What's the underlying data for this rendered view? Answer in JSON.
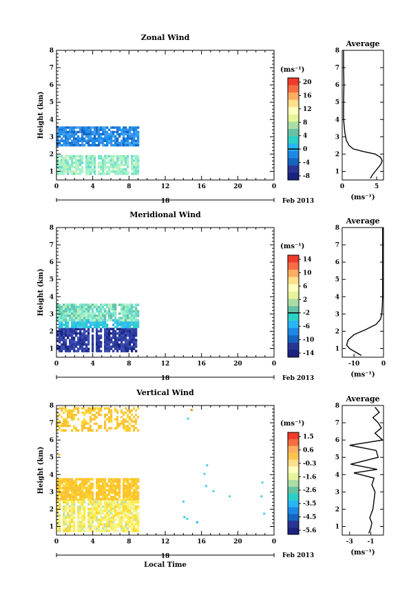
{
  "panels": [
    {
      "title": "Zonal Wind",
      "ylabel": "Height (km)",
      "unit_label": "(ms⁻¹)",
      "date_label": "Feb 2013",
      "day_label": "18",
      "xticks": [
        "0",
        "4",
        "8",
        "12",
        "16",
        "20",
        "0"
      ],
      "yticks": [
        "1",
        "2",
        "3",
        "4",
        "5",
        "6",
        "7",
        "8"
      ],
      "colorbar": {
        "ticks": [
          "20",
          "16",
          "12",
          "8",
          "4",
          "0",
          "-4",
          "-8"
        ],
        "colors": [
          "#ef3b2c",
          "#f46d43",
          "#fdae61",
          "#fee08b",
          "#ffffbf",
          "#e6f598",
          "#abdda4",
          "#66c2a5",
          "#2bd1c5",
          "#29b6f6",
          "#1e88e5",
          "#1565c0",
          "#283593",
          "#1a237e"
        ],
        "zero_line_index": 5
      },
      "heatmap": {
        "x_hours": [
          0,
          9
        ],
        "bands": [
          {
            "h_from": 0.9,
            "h_to": 1.95,
            "palette": [
              "#7fe5c8",
              "#9ff0d0",
              "#b6f2c0",
              "#6ad9d0",
              "#a8efc6",
              "#c6f5b8"
            ]
          },
          {
            "h_from": 2.5,
            "h_to": 3.6,
            "palette": [
              "#1e88e5",
              "#2196f3",
              "#1976d2",
              "#42a5f5",
              "#1565c0",
              "#3f8fe8"
            ]
          }
        ]
      },
      "average": {
        "title": "Average",
        "xlabel": "(ms⁻¹)",
        "xticks": [
          "0",
          "5"
        ],
        "xlim": [
          0,
          6
        ],
        "ylim": [
          0.5,
          8
        ],
        "profile": [
          [
            4.1,
            0.6
          ],
          [
            4.4,
            0.8
          ],
          [
            4.8,
            1.0
          ],
          [
            5.2,
            1.2
          ],
          [
            5.6,
            1.4
          ],
          [
            5.8,
            1.6
          ],
          [
            5.6,
            1.8
          ],
          [
            4.8,
            2.0
          ],
          [
            3.0,
            2.15
          ],
          [
            1.6,
            2.3
          ],
          [
            1.0,
            2.5
          ],
          [
            0.6,
            2.8
          ],
          [
            0.4,
            3.2
          ],
          [
            0.3,
            3.6
          ],
          [
            0.2,
            4.0
          ],
          [
            0.2,
            5.0
          ],
          [
            0.25,
            6.0
          ],
          [
            0.2,
            7.0
          ],
          [
            0.2,
            8.0
          ]
        ]
      }
    },
    {
      "title": "Meridional Wind",
      "ylabel": "Height (km)",
      "unit_label": "(ms⁻¹)",
      "date_label": "Feb 2013",
      "day_label": "18",
      "xticks": [
        "0",
        "4",
        "8",
        "12",
        "16",
        "20",
        "0"
      ],
      "yticks": [
        "1",
        "2",
        "3",
        "4",
        "5",
        "6",
        "7",
        "8"
      ],
      "colorbar": {
        "ticks": [
          "14",
          "10",
          "6",
          "2",
          "-2",
          "-6",
          "-10",
          "-14"
        ],
        "colors": [
          "#ef3b2c",
          "#f46d43",
          "#fdae61",
          "#fee08b",
          "#ffffbf",
          "#e6f598",
          "#abdda4",
          "#66c2a5",
          "#2bd1c5",
          "#29b6f6",
          "#1e88e5",
          "#1565c0",
          "#283593",
          "#1a237e"
        ],
        "zero_line_index": 4
      },
      "heatmap": {
        "x_hours": [
          0,
          9
        ],
        "bands": [
          {
            "h_from": 0.8,
            "h_to": 2.2,
            "palette": [
              "#283593",
              "#303f9f",
              "#3949ab",
              "#1a237e",
              "#3f51b5",
              "#2c3aa8"
            ]
          },
          {
            "h_from": 2.2,
            "h_to": 2.7,
            "palette": [
              "#29b6f6",
              "#4fc3f7",
              "#26c6da",
              "#2bd1c5"
            ]
          },
          {
            "h_from": 2.7,
            "h_to": 3.6,
            "palette": [
              "#7fe5c8",
              "#6ad9d0",
              "#9ff0d0",
              "#66c2a5",
              "#b6f2c0"
            ]
          }
        ]
      },
      "average": {
        "title": "Average",
        "xlabel": "(ms⁻¹)",
        "xticks": [
          "-10",
          "0"
        ],
        "xlim": [
          -14,
          0
        ],
        "ylim": [
          0.5,
          8
        ],
        "profile": [
          [
            -7.5,
            0.6
          ],
          [
            -9.5,
            0.8
          ],
          [
            -11.5,
            1.0
          ],
          [
            -12.5,
            1.2
          ],
          [
            -12.0,
            1.5
          ],
          [
            -10.0,
            1.8
          ],
          [
            -6.0,
            2.1
          ],
          [
            -2.5,
            2.4
          ],
          [
            -1.0,
            2.7
          ],
          [
            -0.6,
            3.0
          ],
          [
            -0.4,
            3.5
          ],
          [
            -0.3,
            4.0
          ],
          [
            -0.3,
            5.0
          ],
          [
            -0.3,
            6.0
          ],
          [
            -0.3,
            7.0
          ],
          [
            -0.3,
            8.0
          ]
        ]
      }
    },
    {
      "title": "Vertical Wind",
      "ylabel": "Height (km)",
      "unit_label": "(ms⁻¹)",
      "date_label": "Feb 2013",
      "day_label": "18",
      "xlabel": "Local Time",
      "xticks": [
        "0",
        "4",
        "8",
        "12",
        "16",
        "20",
        "0"
      ],
      "yticks": [
        "1",
        "2",
        "3",
        "4",
        "5",
        "6",
        "7",
        "8"
      ],
      "colorbar": {
        "ticks": [
          "1.5",
          "0.6",
          "-0.3",
          "-1.6",
          "-2.6",
          "-3.5",
          "-4.5",
          "-5.6"
        ],
        "colors": [
          "#ef3b2c",
          "#f46d43",
          "#fdae61",
          "#fec44f",
          "#fee08b",
          "#ffffbf",
          "#e6f598",
          "#abdda4",
          "#66c2a5",
          "#2bd1c5",
          "#29b6f6",
          "#1e88e5",
          "#1565c0",
          "#283593",
          "#1a237e"
        ],
        "zero_line_index": -1
      },
      "heatmap": {
        "x_hours": [
          0,
          9
        ],
        "bands": [
          {
            "h_from": 0.7,
            "h_to": 2.6,
            "palette": [
              "#ffee58",
              "#fff176",
              "#e6f598",
              "#fdd835",
              "#ffeb3b",
              "#c5e1a5",
              "#fff59d"
            ]
          },
          {
            "h_from": 2.6,
            "h_to": 3.8,
            "palette": [
              "#fbc02d",
              "#fdd835",
              "#f9c23c",
              "#ffca28",
              "#fbc531"
            ]
          },
          {
            "h_from": 6.6,
            "h_to": 7.9,
            "palette": [
              "#fbc02d",
              "#fdd835",
              "#ffffff",
              "#ffffff",
              "#f9c23c"
            ]
          }
        ]
      },
      "average": {
        "title": "Average",
        "xlabel": "(ms⁻¹)",
        "xticks": [
          "-3",
          "-1"
        ],
        "xlim": [
          -3.7,
          0.2
        ],
        "ylim": [
          0.5,
          8
        ],
        "profile": [
          [
            -1.2,
            0.6
          ],
          [
            -1.0,
            0.9
          ],
          [
            -0.9,
            1.2
          ],
          [
            -1.1,
            1.5
          ],
          [
            -0.8,
            2.0
          ],
          [
            -0.7,
            2.5
          ],
          [
            -0.6,
            3.0
          ],
          [
            -0.9,
            3.4
          ],
          [
            -0.7,
            3.8
          ],
          [
            -2.6,
            4.1
          ],
          [
            -0.4,
            4.3
          ],
          [
            -2.9,
            4.6
          ],
          [
            -0.3,
            5.0
          ],
          [
            -0.5,
            5.4
          ],
          [
            -3.0,
            5.7
          ],
          [
            0.1,
            6.0
          ],
          [
            -0.6,
            6.4
          ],
          [
            0.0,
            6.7
          ],
          [
            -0.3,
            7.0
          ],
          [
            -0.8,
            7.3
          ],
          [
            -0.2,
            7.6
          ],
          [
            -0.6,
            7.9
          ]
        ]
      }
    }
  ]
}
